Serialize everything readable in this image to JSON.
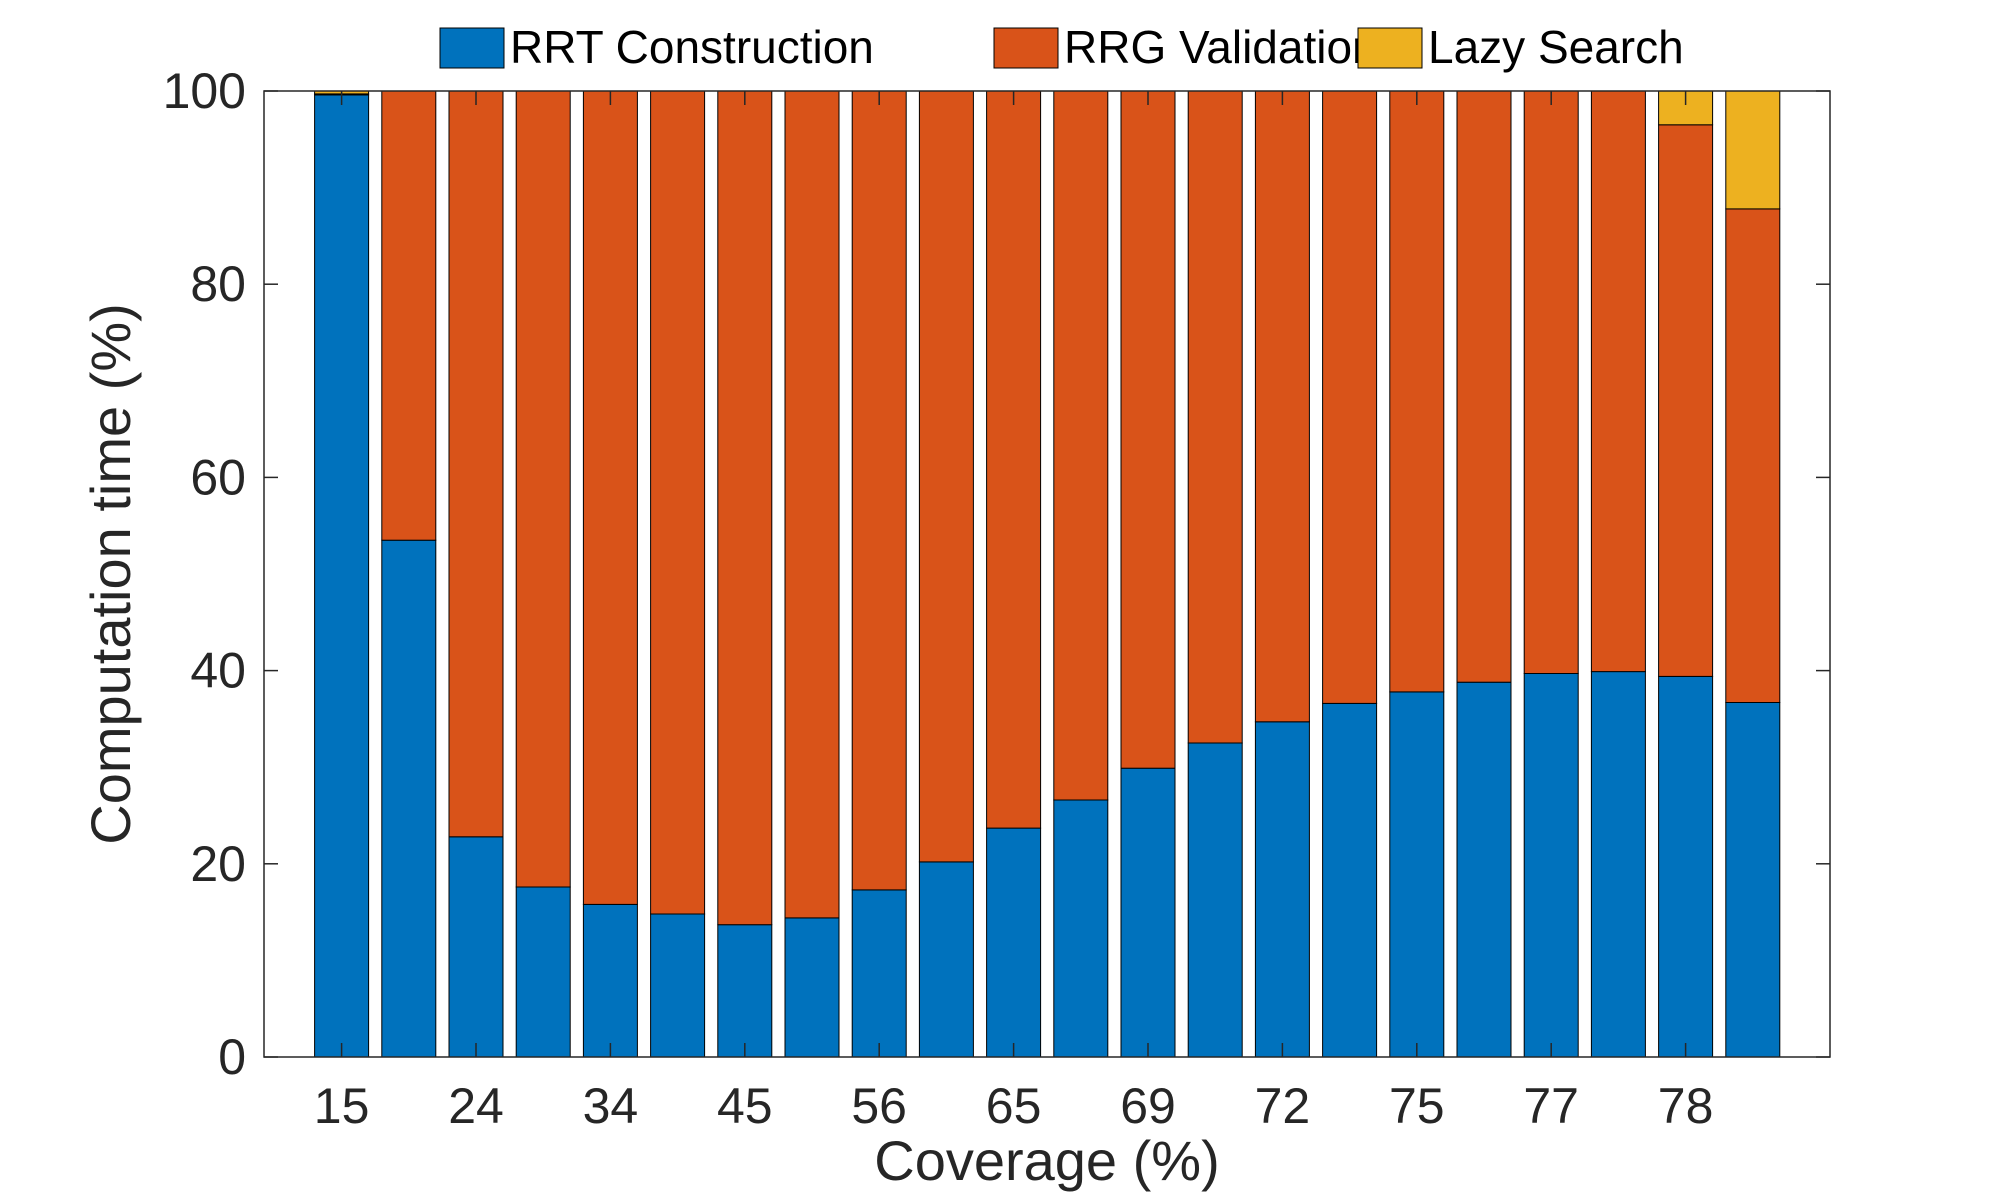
{
  "chart_data": {
    "type": "bar",
    "stacked": true,
    "title": "",
    "xlabel": "Coverage (%)",
    "ylabel": "Computation time (%)",
    "ylim": [
      0,
      100
    ],
    "yticks": [
      0,
      20,
      40,
      60,
      80,
      100
    ],
    "ytick_labels": [
      "0",
      "20",
      "40",
      "60",
      "80",
      "100"
    ],
    "categories": [
      "15",
      "",
      "24",
      "",
      "34",
      "",
      "45",
      "",
      "56",
      "",
      "65",
      "",
      "69",
      "",
      "72",
      "",
      "75",
      "",
      "77",
      "",
      "78",
      ""
    ],
    "legend_position": "top",
    "grid": false,
    "series": [
      {
        "name": "RRT Construction",
        "color": "#0072BD",
        "values": [
          99.6,
          53.5,
          22.8,
          17.6,
          15.8,
          14.8,
          13.7,
          14.4,
          17.3,
          20.2,
          23.7,
          26.6,
          29.9,
          32.5,
          34.7,
          36.6,
          37.8,
          38.8,
          39.7,
          39.9,
          39.4,
          36.7
        ]
      },
      {
        "name": "RRG Validation",
        "color": "#D95319",
        "values": [
          0.1,
          46.5,
          77.2,
          82.4,
          84.2,
          85.2,
          86.3,
          85.6,
          82.7,
          79.8,
          76.3,
          73.4,
          70.1,
          67.5,
          65.3,
          63.4,
          62.2,
          61.2,
          60.3,
          60.1,
          57.1,
          51.1
        ]
      },
      {
        "name": "Lazy Search",
        "color": "#EDB120",
        "values": [
          0.3,
          0,
          0,
          0,
          0,
          0,
          0,
          0,
          0,
          0,
          0,
          0,
          0,
          0,
          0,
          0,
          0,
          0,
          0,
          0,
          3.5,
          12.2
        ]
      }
    ]
  }
}
